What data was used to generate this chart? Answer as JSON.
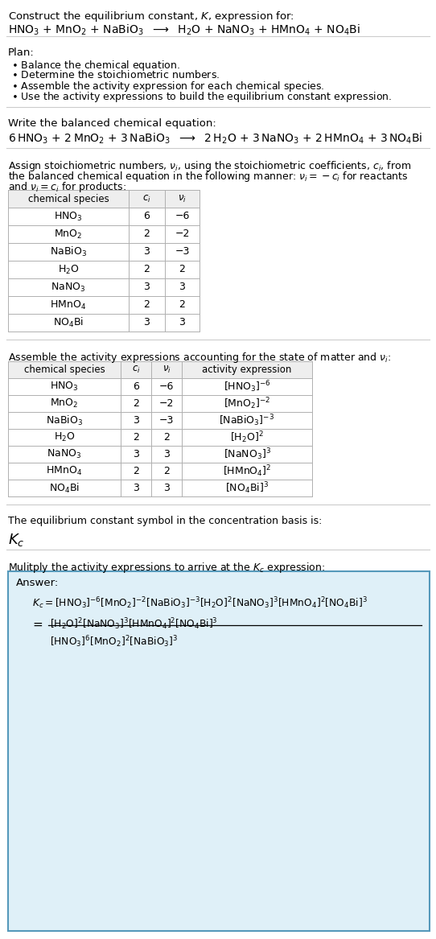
{
  "bg_color": "#ffffff",
  "table_border_color": "#b0b0b0",
  "table_header_bg": "#eeeeee",
  "answer_box_bg": "#dff0f8",
  "answer_box_border": "#5599bb",
  "section_divider_color": "#cccccc",
  "table1_rows": [
    [
      "HNO_3",
      "6",
      "−6"
    ],
    [
      "MnO_2",
      "2",
      "−2"
    ],
    [
      "NaBiO_3",
      "3",
      "−3"
    ],
    [
      "H_2O",
      "2",
      "2"
    ],
    [
      "NaNO_3",
      "3",
      "3"
    ],
    [
      "HMnO_4",
      "2",
      "2"
    ],
    [
      "NO_4Bi",
      "3",
      "3"
    ]
  ],
  "table2_rows": [
    [
      "HNO_3",
      "6",
      "−6"
    ],
    [
      "MnO_2",
      "2",
      "−2"
    ],
    [
      "NaBiO_3",
      "3",
      "−3"
    ],
    [
      "H_2O",
      "2",
      "2"
    ],
    [
      "NaNO_3",
      "3",
      "3"
    ],
    [
      "HMnO_4",
      "2",
      "2"
    ],
    [
      "NO_4Bi",
      "3",
      "3"
    ]
  ]
}
